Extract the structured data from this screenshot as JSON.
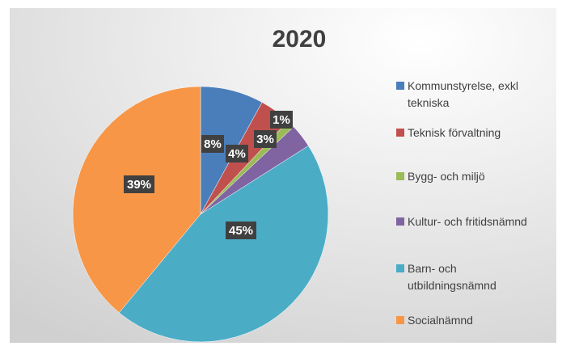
{
  "chart_data": {
    "type": "pie",
    "title": "2020",
    "categories": [
      "Kommunstyrelse, exkl tekniska",
      "Teknisk förvaltning",
      "Bygg- och miljö",
      "Kultur- och fritidsnämnd",
      "Barn- och utbildningsnämnd",
      "Socialnämnd"
    ],
    "values": [
      8,
      4,
      1,
      3,
      45,
      39
    ],
    "value_labels": [
      "8%",
      "4%",
      "1%",
      "3%",
      "45%",
      "39%"
    ],
    "colors": [
      "#4a7ebb",
      "#c0504d",
      "#9bbb59",
      "#8064a2",
      "#4bacc6",
      "#f79646"
    ],
    "legend": "right"
  }
}
